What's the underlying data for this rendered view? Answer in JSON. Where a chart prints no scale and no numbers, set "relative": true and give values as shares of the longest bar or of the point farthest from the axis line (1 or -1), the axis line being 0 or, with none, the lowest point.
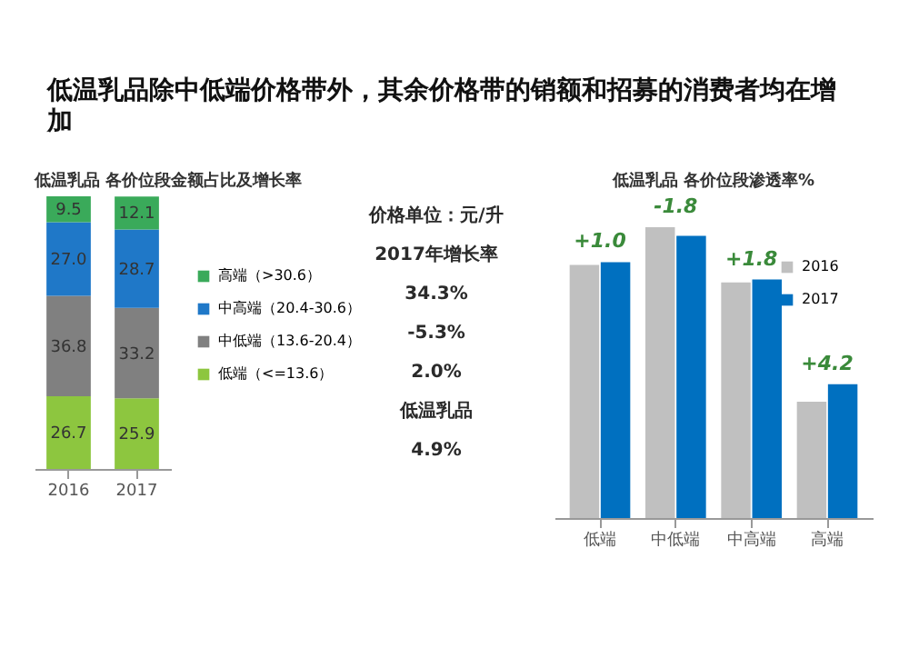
{
  "chart_data": [
    {
      "type": "bar",
      "title": "低温乳品除中低端价格带外，其余价格带的销额和招募的消费者均在增加",
      "subtitle": "低温乳品 各价位段金额占比及增长率",
      "categories": [
        "2016",
        "2017"
      ],
      "stacked": true,
      "legend": "right",
      "series": [
        {
          "name": "低端（<=13.6）",
          "color": "#8dc63f",
          "values": [
            26.7,
            25.9
          ],
          "value_labels": [
            "26.7",
            "25.9"
          ]
        },
        {
          "name": "中低端（13.6-20.4）",
          "color": "#808080",
          "values": [
            36.8,
            33.2
          ],
          "value_labels": [
            "36.8",
            "33.2"
          ]
        },
        {
          "name": "中高端（20.4-30.6）",
          "color": "#1f78c8",
          "values": [
            27.0,
            28.7
          ],
          "value_labels": [
            "27.0",
            "28.7"
          ]
        },
        {
          "name": "高端（>30.6）",
          "color": "#3aaa5a",
          "values": [
            9.5,
            12.1
          ],
          "value_labels": [
            "9.5",
            "12.1"
          ]
        }
      ],
      "annotations": [
        "价格单位：元/升",
        "2017年增长率",
        "34.3%",
        "-5.3%",
        "2.0%",
        "低温乳品",
        "4.9%"
      ]
    },
    {
      "type": "bar",
      "title": "低温乳品 各价位段渗透率%",
      "categories": [
        "低端",
        "中低端",
        "中高端",
        "高端"
      ],
      "relative": true,
      "legend": "top right",
      "series": [
        {
          "name": "2016",
          "color": "#c0c0c0",
          "values": [
            0.87,
            1.0,
            0.81,
            0.4
          ]
        },
        {
          "name": "2017",
          "color": "#0070c0",
          "values": [
            0.88,
            0.97,
            0.82,
            0.46
          ]
        }
      ],
      "annotations": [
        "+1.0",
        "-1.8",
        "+1.8",
        "+4.2"
      ]
    }
  ]
}
